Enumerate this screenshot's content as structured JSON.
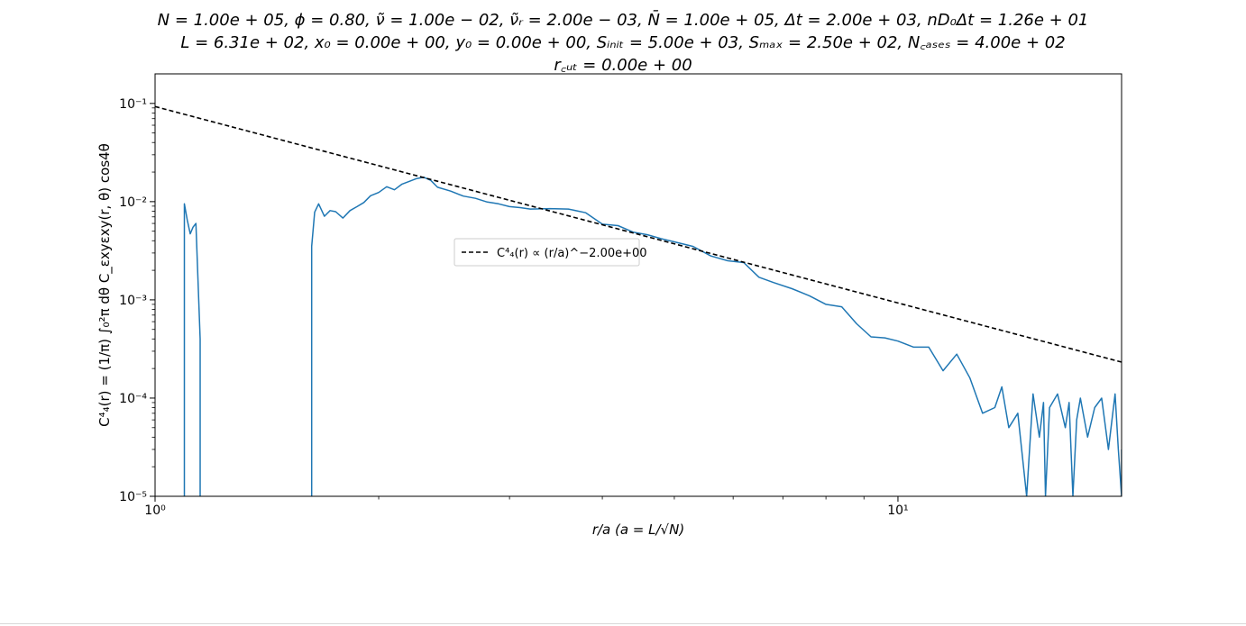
{
  "chart_data": {
    "type": "line",
    "title_lines": [
      "N = 1.00e + 05, ϕ = 0.80, ν̃ = 1.00e − 02, ν̃ᵣ = 2.00e − 03, N̄ = 1.00e + 05, Δt = 2.00e + 03, nD₀Δt = 1.26e + 01",
      "L = 6.31e + 02, x₀ = 0.00e + 00, y₀ = 0.00e + 00, Sᵢₙᵢₜ = 5.00e + 03, Sₘₐₓ = 2.50e + 02, N꜀ₐₛₑₛ = 4.00e + 02",
      "r꜀ᵤₜ = 0.00e + 00"
    ],
    "xlabel": "r/a (a = L/√N)",
    "ylabel": "C⁴₄(r) = (1/π) ∫₀²π dθ C_εxyεxy(r, θ) cos4θ",
    "xscale": "log",
    "yscale": "log",
    "xlim": [
      1.0,
      20.0
    ],
    "ylim": [
      1e-05,
      0.2
    ],
    "x_ticks": [
      {
        "value": 1,
        "label": "10⁰"
      },
      {
        "value": 10,
        "label": "10¹"
      }
    ],
    "y_ticks": [
      {
        "value": 1e-05,
        "label": "10⁻⁵"
      },
      {
        "value": 0.0001,
        "label": "10⁻⁴"
      },
      {
        "value": 0.001,
        "label": "10⁻³"
      },
      {
        "value": 0.01,
        "label": "10⁻²"
      },
      {
        "value": 0.1,
        "label": "10⁻¹"
      }
    ],
    "grid": false,
    "legend": {
      "placement": "center-left",
      "entries": [
        {
          "label": "C⁴₄(r) ∝ (r/a)^−2.00e+00",
          "style": "dashed",
          "color": "#000000"
        }
      ]
    },
    "series": [
      {
        "color": "#1f77b4",
        "style": "solid",
        "segments": [
          {
            "x": [
              1.095,
              1.095,
              1.105,
              1.115,
              1.125,
              1.135,
              1.15,
              1.15
            ],
            "y": [
              1e-05,
              0.0095,
              0.0065,
              0.0047,
              0.0055,
              0.006,
              0.0004,
              1e-05
            ]
          },
          {
            "x": [
              1.625,
              1.625,
              1.64,
              1.66,
              1.69,
              1.72,
              1.75,
              1.79,
              1.83,
              1.87,
              1.91,
              1.95,
              2.0,
              2.05,
              2.1,
              2.15,
              2.2,
              2.25,
              2.3,
              2.35,
              2.4,
              2.5,
              2.6,
              2.7,
              2.8,
              2.9,
              3.0,
              3.1,
              3.2,
              3.4,
              3.6,
              3.8,
              4.0,
              4.2,
              4.4,
              4.6,
              4.8,
              5.0,
              5.3,
              5.6,
              5.9,
              6.2,
              6.5,
              6.8,
              7.2,
              7.6,
              8.0,
              8.4,
              8.8,
              9.2,
              9.6,
              10.0,
              10.5,
              11.0,
              11.5,
              12.0,
              12.5,
              13.0,
              13.5,
              13.8,
              14.1,
              14.5,
              14.9,
              15.2,
              15.5,
              15.7,
              15.8,
              16.0,
              16.4,
              16.8,
              17.0,
              17.2,
              17.4,
              17.6,
              18.0,
              18.4,
              18.8,
              19.2,
              19.6,
              19.8,
              20.0,
              20.0
            ],
            "y": [
              1e-05,
              0.0035,
              0.0078,
              0.0095,
              0.0071,
              0.0081,
              0.0079,
              0.0068,
              0.0081,
              0.0089,
              0.0098,
              0.0115,
              0.0124,
              0.0142,
              0.0132,
              0.0151,
              0.0161,
              0.0172,
              0.0177,
              0.0165,
              0.014,
              0.0128,
              0.0114,
              0.0108,
              0.0099,
              0.0095,
              0.0089,
              0.0087,
              0.0084,
              0.0085,
              0.0084,
              0.0077,
              0.0059,
              0.0057,
              0.0049,
              0.0046,
              0.0042,
              0.0039,
              0.0035,
              0.0028,
              0.0025,
              0.0024,
              0.0017,
              0.0015,
              0.0013,
              0.0011,
              0.0009,
              0.00085,
              0.00057,
              0.00042,
              0.00041,
              0.00038,
              0.00033,
              0.00033,
              0.00019,
              0.00028,
              0.00016,
              7e-05,
              8e-05,
              0.00013,
              5e-05,
              7e-05,
              1e-05,
              0.00011,
              4e-05,
              9e-05,
              1e-05,
              8e-05,
              0.00011,
              5e-05,
              9e-05,
              1e-05,
              6e-05,
              0.0001,
              4e-05,
              8e-05,
              0.0001,
              3e-05,
              0.00011,
              3e-05,
              1e-05,
              3e-05
            ]
          }
        ]
      },
      {
        "color": "#000000",
        "style": "dashed",
        "law": {
          "type": "power",
          "prefactor": 0.093,
          "exponent": -2.0
        },
        "x": [
          1.0,
          20.0
        ],
        "y": [
          0.093,
          0.0002325
        ]
      }
    ]
  }
}
